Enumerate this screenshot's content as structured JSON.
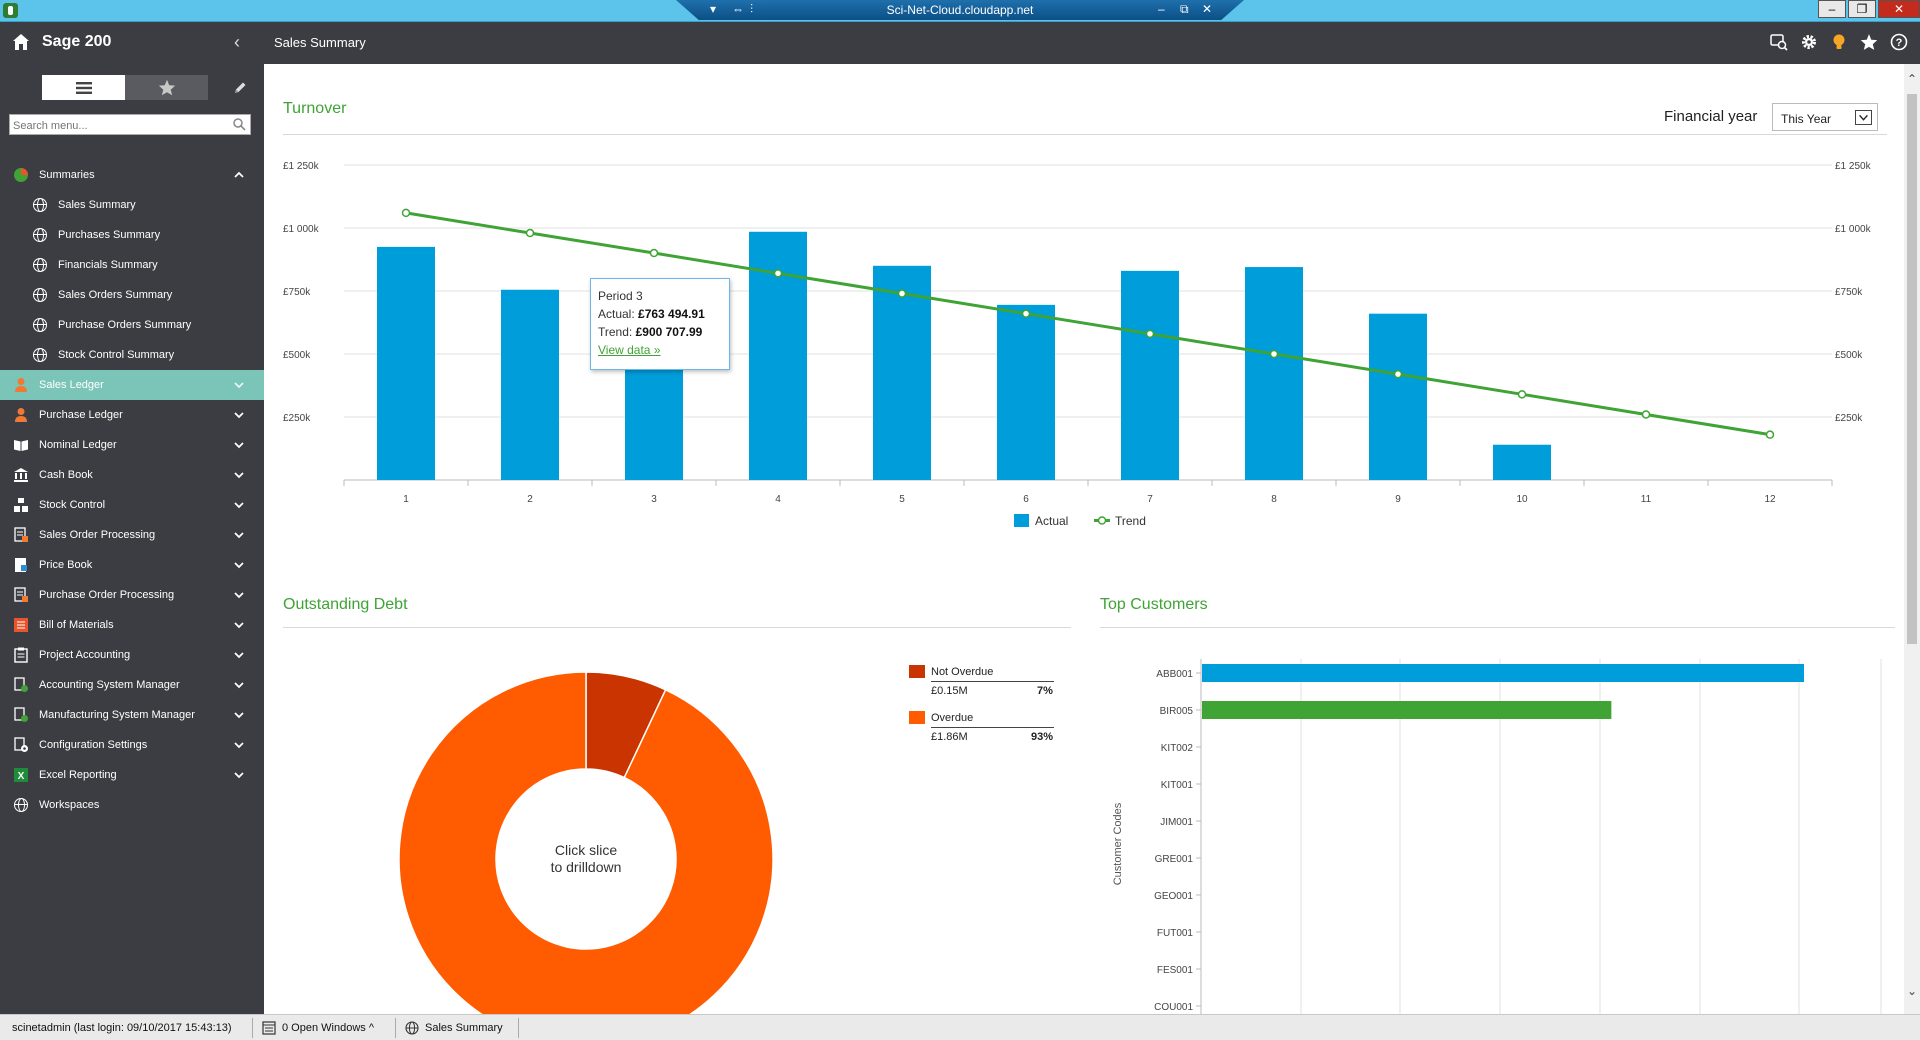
{
  "remote_bar": {
    "title": "Sci-Net-Cloud.cloudapp.net",
    "buttons": [
      "▾",
      "⇔",
      "⫶",
      "–",
      "⧉",
      "✕"
    ]
  },
  "window_controls": [
    "–",
    "❐",
    "✕"
  ],
  "sidebar": {
    "brand": "Sage 200",
    "search_placeholder": "Search menu...",
    "items": [
      {
        "label": "Summaries",
        "icon": "pie-chart-icon",
        "level": 0,
        "expanded": true
      },
      {
        "label": "Sales Summary",
        "icon": "globe-icon",
        "level": 1
      },
      {
        "label": "Purchases Summary",
        "icon": "globe-icon",
        "level": 1
      },
      {
        "label": "Financials Summary",
        "icon": "globe-icon",
        "level": 1
      },
      {
        "label": "Sales Orders Summary",
        "icon": "globe-icon",
        "level": 1
      },
      {
        "label": "Purchase Orders Summary",
        "icon": "globe-icon",
        "level": 1
      },
      {
        "label": "Stock Control Summary",
        "icon": "globe-icon",
        "level": 1
      },
      {
        "label": "Sales Ledger",
        "icon": "person-icon",
        "level": 0,
        "active": true
      },
      {
        "label": "Purchase Ledger",
        "icon": "person-icon",
        "level": 0
      },
      {
        "label": "Nominal Ledger",
        "icon": "book-icon",
        "level": 0
      },
      {
        "label": "Cash Book",
        "icon": "bank-icon",
        "level": 0
      },
      {
        "label": "Stock Control",
        "icon": "boxes-icon",
        "level": 0
      },
      {
        "label": "Sales Order Processing",
        "icon": "document-icon",
        "level": 0
      },
      {
        "label": "Price Book",
        "icon": "price-book-icon",
        "level": 0
      },
      {
        "label": "Purchase Order Processing",
        "icon": "document-icon",
        "level": 0
      },
      {
        "label": "Bill of Materials",
        "icon": "bill-of-materials-icon",
        "level": 0
      },
      {
        "label": "Project Accounting",
        "icon": "clipboard-icon",
        "level": 0
      },
      {
        "label": "Accounting System Manager",
        "icon": "system-manager-icon",
        "level": 0
      },
      {
        "label": "Manufacturing System Manager",
        "icon": "system-manager-icon",
        "level": 0
      },
      {
        "label": "Configuration Settings",
        "icon": "settings-doc-icon",
        "level": 0
      },
      {
        "label": "Excel Reporting",
        "icon": "excel-icon",
        "level": 0
      },
      {
        "label": "Workspaces",
        "icon": "globe-icon",
        "level": 0,
        "no_chevron": true
      }
    ]
  },
  "header": {
    "title": "Sales Summary",
    "icons": [
      "search-user-icon",
      "gear-icon",
      "bulb-icon",
      "star-icon",
      "help-icon"
    ]
  },
  "turnover": {
    "title": "Turnover",
    "financial_year_label": "Financial year",
    "financial_year_value": "This Year",
    "tooltip": {
      "period": "Period 3",
      "actual_label": "Actual:",
      "actual_value": "£763 494.91",
      "trend_label": "Trend:",
      "trend_value": "£900 707.99",
      "link": "View data »"
    }
  },
  "outstanding_debt": {
    "title": "Outstanding Debt",
    "center_text_1": "Click slice",
    "center_text_2": "to drilldown",
    "legend": [
      {
        "label": "Not Overdue",
        "amount": "£0.15M",
        "percent": "7%",
        "color": "#c93400"
      },
      {
        "label": "Overdue",
        "amount": "£1.86M",
        "percent": "93%",
        "color": "#ff5b00"
      }
    ]
  },
  "top_customers": {
    "title": "Top Customers",
    "axis_label": "Customer Codes"
  },
  "chart_data": [
    {
      "type": "bar",
      "title": "Turnover",
      "categories": [
        "1",
        "2",
        "3",
        "4",
        "5",
        "6",
        "7",
        "8",
        "9",
        "10",
        "11",
        "12"
      ],
      "series": [
        {
          "name": "Actual",
          "type": "bar",
          "color": "#009ddb",
          "values": [
            925000,
            755000,
            763494.91,
            985000,
            850000,
            695000,
            830000,
            845000,
            660000,
            140000,
            null,
            null
          ]
        },
        {
          "name": "Trend",
          "type": "line",
          "color": "#3fa335",
          "values": [
            1060000,
            980000,
            900707.99,
            820000,
            740000,
            660000,
            580000,
            500000,
            420000,
            340000,
            260000,
            180000
          ]
        }
      ],
      "ylim": [
        0,
        1250000
      ],
      "yticks": [
        250000,
        500000,
        750000,
        1000000,
        1250000
      ],
      "ytick_labels": [
        "£250k",
        "£500k",
        "£750k",
        "£1 000k",
        "£1 250k"
      ],
      "legend_position": "bottom-center",
      "grid": true
    },
    {
      "type": "pie",
      "title": "Outstanding Debt",
      "donut": true,
      "slices": [
        {
          "label": "Not Overdue",
          "value": 7,
          "color": "#c93400"
        },
        {
          "label": "Overdue",
          "value": 93,
          "color": "#ff5b00"
        }
      ]
    },
    {
      "type": "bar",
      "orientation": "horizontal",
      "title": "Top Customers",
      "ylabel": "Customer Codes",
      "categories": [
        "ABB001",
        "BIR005",
        "KIT002",
        "KIT001",
        "JIM001",
        "GRE001",
        "GEO001",
        "FUT001",
        "FES001",
        "COU001"
      ],
      "values": [
        1.0,
        0.68,
        null,
        null,
        null,
        null,
        null,
        null,
        null,
        null
      ],
      "colors": [
        "#009ddb",
        "#3fa335"
      ],
      "grid": true
    }
  ],
  "statusbar": {
    "user": "scinetadmin (last login: 09/10/2017 15:43:13)",
    "open_windows": "0 Open Windows ^",
    "current": "Sales Summary"
  }
}
